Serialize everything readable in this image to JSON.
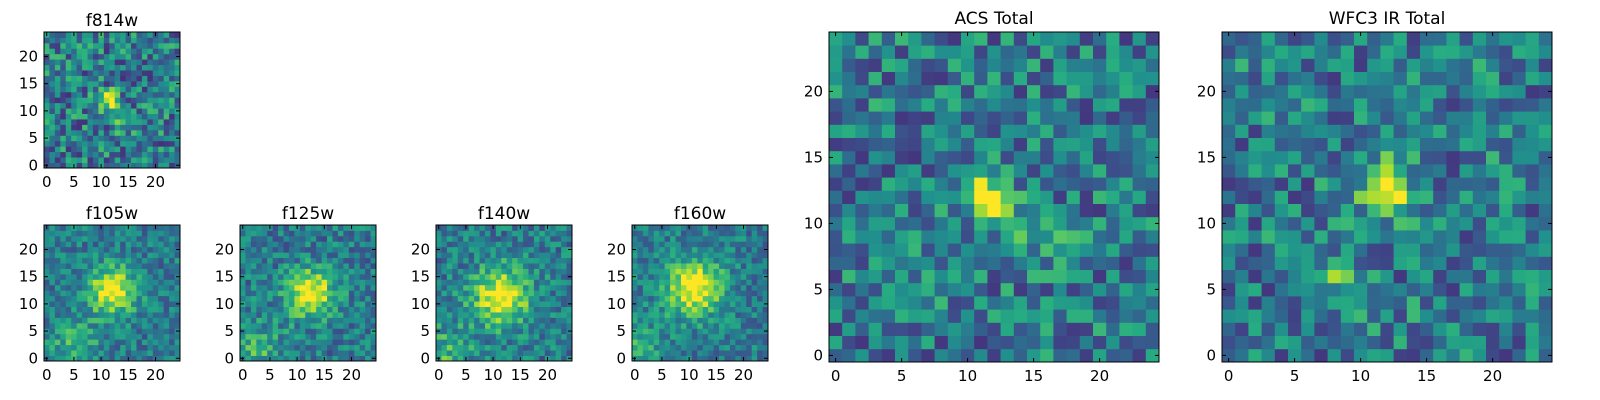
{
  "chart_data": [
    {
      "type": "heatmap",
      "title": "f814w",
      "grid_size": [
        25,
        25
      ],
      "xlim": [
        -0.5,
        24.5
      ],
      "ylim": [
        -0.5,
        24.5
      ],
      "xticks": [
        0,
        5,
        10,
        15,
        20
      ],
      "yticks": [
        0,
        5,
        10,
        15,
        20
      ],
      "colormap": "viridis",
      "peak": [
        11.5,
        12.0
      ],
      "peak_sigma": 1.2,
      "secondary": [
        14.0,
        8.0
      ],
      "noise": 0.28,
      "seed": 11
    },
    {
      "type": "heatmap",
      "title": "f105w",
      "grid_size": [
        25,
        25
      ],
      "xlim": [
        -0.5,
        24.5
      ],
      "ylim": [
        -0.5,
        24.5
      ],
      "xticks": [
        0,
        5,
        10,
        15,
        20
      ],
      "yticks": [
        0,
        5,
        10,
        15,
        20
      ],
      "colormap": "viridis",
      "peak": [
        12.0,
        12.5
      ],
      "peak_sigma": 3.0,
      "secondary": [
        5.0,
        3.0
      ],
      "noise": 0.18,
      "seed": 23
    },
    {
      "type": "heatmap",
      "title": "f125w",
      "grid_size": [
        25,
        25
      ],
      "xlim": [
        -0.5,
        24.5
      ],
      "ylim": [
        -0.5,
        24.5
      ],
      "xticks": [
        0,
        5,
        10,
        15,
        20
      ],
      "yticks": [
        0,
        5,
        10,
        15,
        20
      ],
      "colormap": "viridis",
      "peak": [
        12.5,
        12.0
      ],
      "peak_sigma": 3.0,
      "secondary": [
        3.0,
        2.0
      ],
      "noise": 0.2,
      "seed": 37
    },
    {
      "type": "heatmap",
      "title": "f140w",
      "grid_size": [
        25,
        25
      ],
      "xlim": [
        -0.5,
        24.5
      ],
      "ylim": [
        -0.5,
        24.5
      ],
      "xticks": [
        0,
        5,
        10,
        15,
        20
      ],
      "yticks": [
        0,
        5,
        10,
        15,
        20
      ],
      "colormap": "viridis",
      "peak": [
        11.5,
        11.5
      ],
      "peak_sigma": 3.6,
      "secondary": [
        1.0,
        1.0
      ],
      "noise": 0.2,
      "seed": 41
    },
    {
      "type": "heatmap",
      "title": "f160w",
      "grid_size": [
        25,
        25
      ],
      "xlim": [
        -0.5,
        24.5
      ],
      "ylim": [
        -0.5,
        24.5
      ],
      "xticks": [
        0,
        5,
        10,
        15,
        20
      ],
      "yticks": [
        0,
        5,
        10,
        15,
        20
      ],
      "colormap": "viridis",
      "peak": [
        11.0,
        13.0
      ],
      "peak_sigma": 3.6,
      "secondary": [
        0.0,
        1.0
      ],
      "noise": 0.18,
      "seed": 53
    },
    {
      "type": "heatmap",
      "title": "ACS Total",
      "grid_size": [
        25,
        25
      ],
      "xlim": [
        -0.5,
        24.5
      ],
      "ylim": [
        -0.5,
        24.5
      ],
      "xticks": [
        0,
        5,
        10,
        15,
        20
      ],
      "yticks": [
        0,
        5,
        10,
        15,
        20
      ],
      "colormap": "viridis",
      "peak": [
        11.5,
        12.0
      ],
      "peak_sigma": 1.3,
      "secondary": [
        16.0,
        9.0
      ],
      "noise": 0.26,
      "seed": 67
    },
    {
      "type": "heatmap",
      "title": "WFC3 IR Total",
      "grid_size": [
        25,
        25
      ],
      "xlim": [
        -0.5,
        24.5
      ],
      "ylim": [
        -0.5,
        24.5
      ],
      "xticks": [
        0,
        5,
        10,
        15,
        20
      ],
      "yticks": [
        0,
        5,
        10,
        15,
        20
      ],
      "colormap": "viridis",
      "peak": [
        12.0,
        12.5
      ],
      "peak_sigma": 1.4,
      "secondary": [
        8.0,
        6.0
      ],
      "noise": 0.26,
      "seed": 79
    }
  ]
}
